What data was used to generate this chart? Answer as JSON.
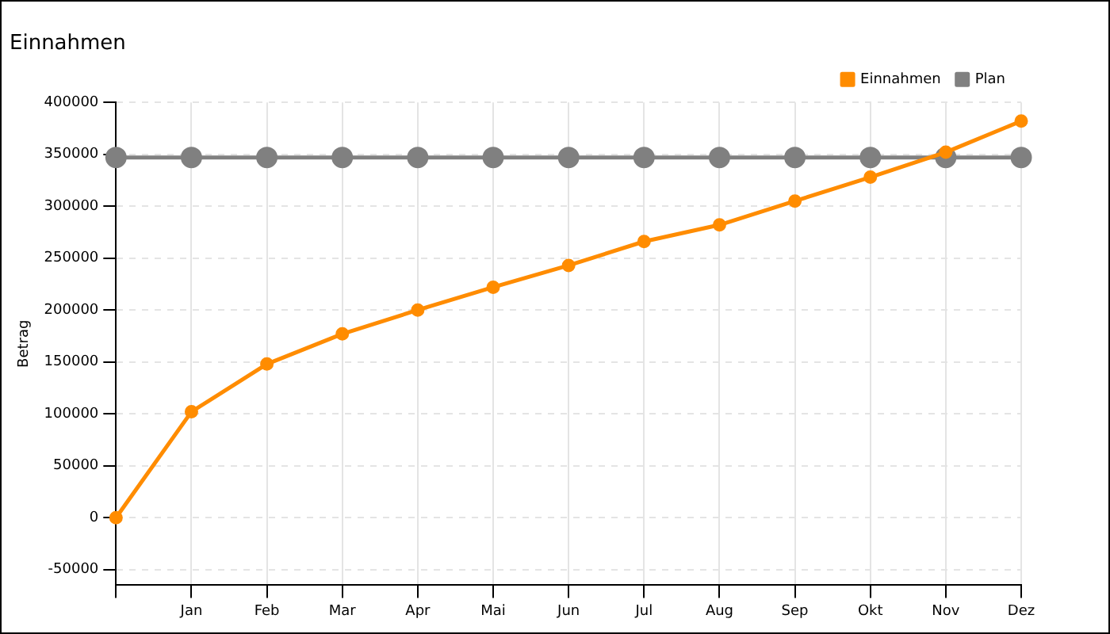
{
  "chart_data": {
    "type": "line",
    "title": "Einnahmen",
    "ylabel": "Betrag",
    "categories": [
      null,
      "Jan",
      "Feb",
      "Mar",
      "Apr",
      "Mai",
      "Jun",
      "Jul",
      "Aug",
      "Sep",
      "Okt",
      "Nov",
      "Dez"
    ],
    "series": [
      {
        "name": "Einnahmen",
        "color": "#ff8c00",
        "values": [
          0,
          102000,
          148000,
          177000,
          200000,
          222000,
          243000,
          266000,
          282000,
          305000,
          328000,
          352000,
          382000
        ]
      },
      {
        "name": "Plan",
        "color": "#808080",
        "values": [
          347000,
          347000,
          347000,
          347000,
          347000,
          347000,
          347000,
          347000,
          347000,
          347000,
          347000,
          347000,
          347000
        ]
      }
    ],
    "ylim": [
      -65000,
      400000
    ],
    "yticks": [
      -50000,
      0,
      50000,
      100000,
      150000,
      200000,
      250000,
      300000,
      350000,
      400000
    ],
    "grid": true,
    "legend": "top right",
    "marker": "circle",
    "line_style": "solid"
  }
}
